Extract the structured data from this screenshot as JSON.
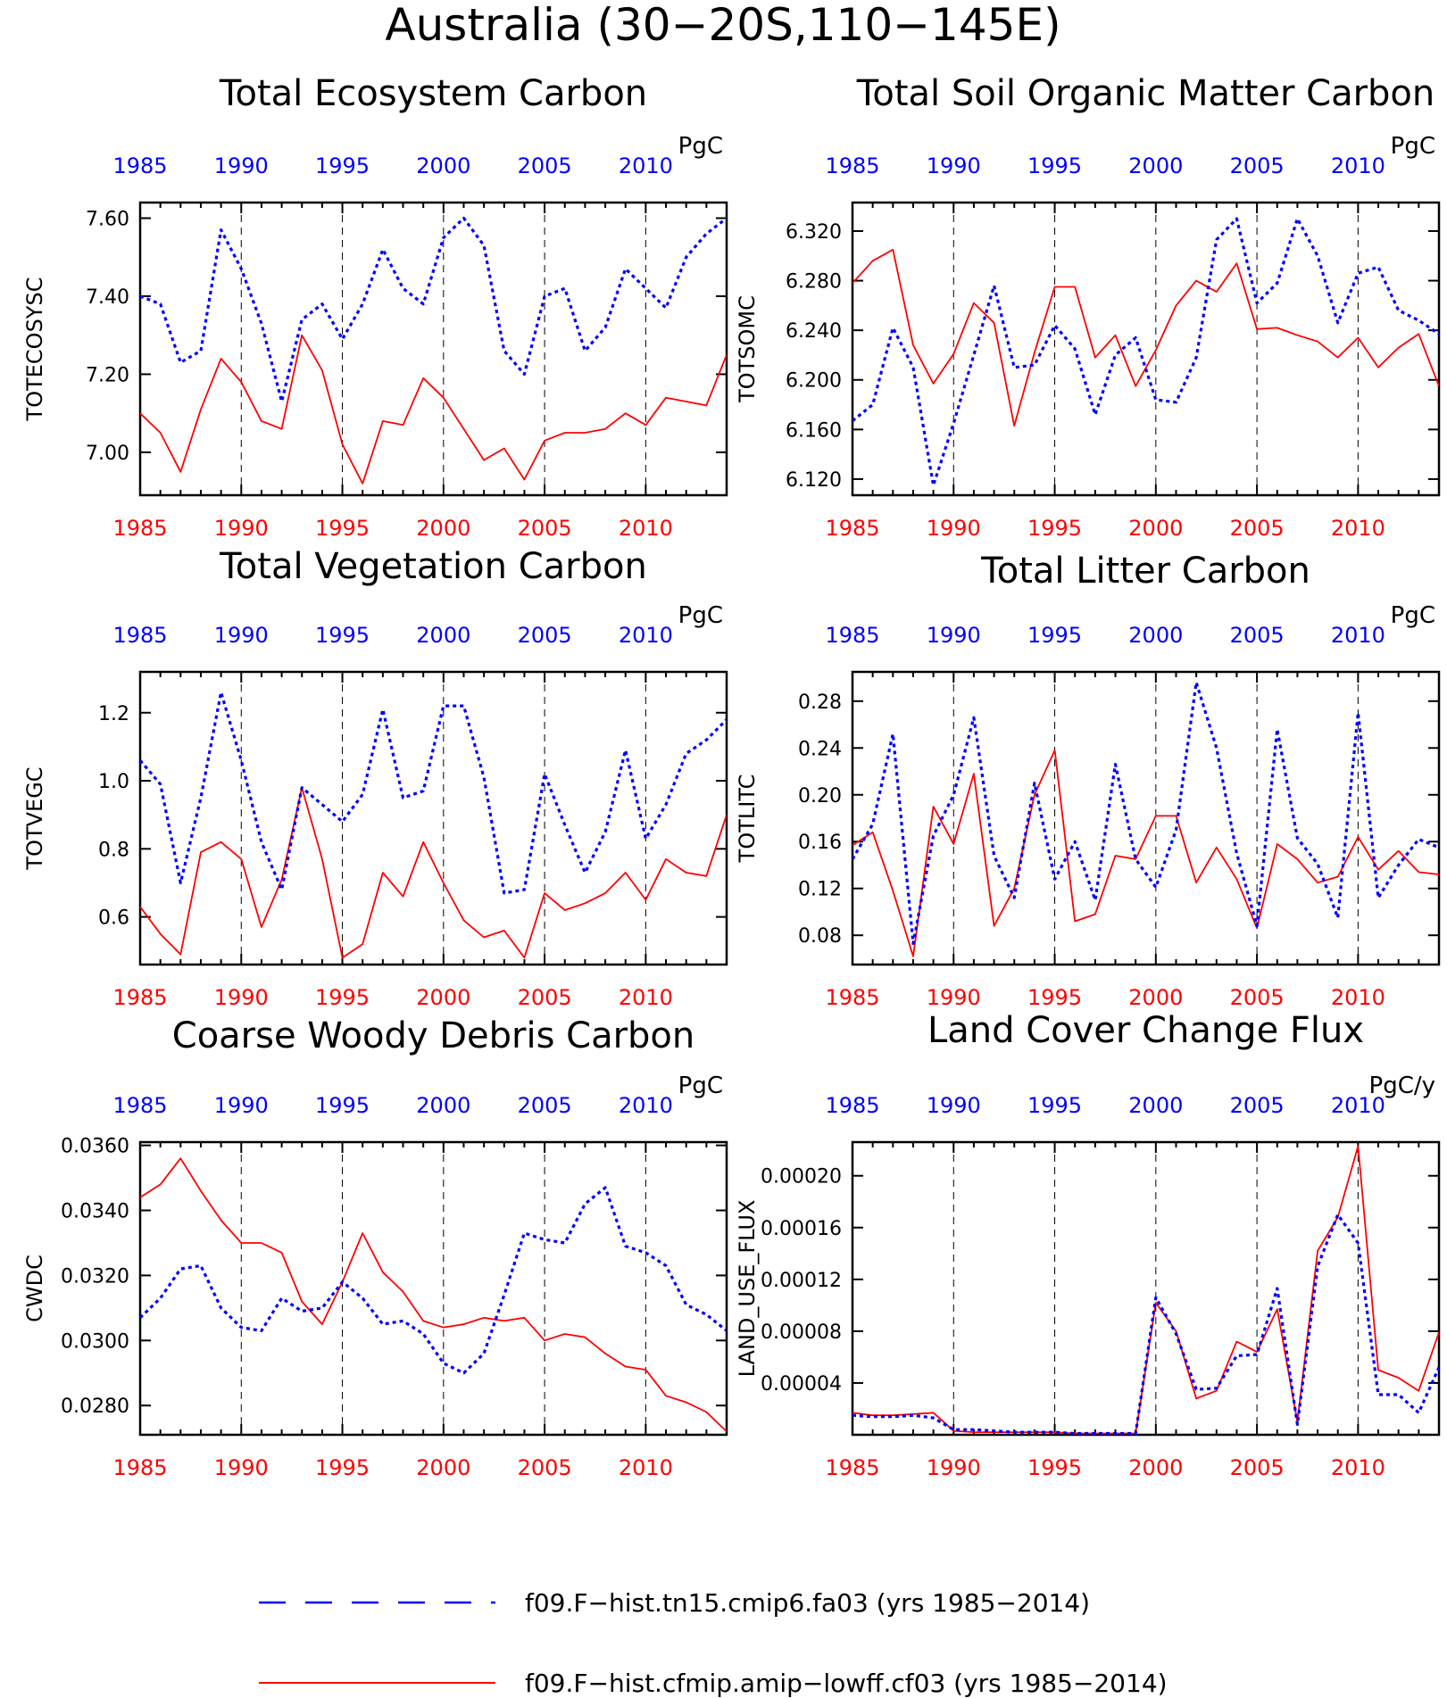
{
  "figure": {
    "title": "Australia (30−20S,110−145E)",
    "x_tick_labels": [
      "1985",
      "1990",
      "1995",
      "2000",
      "2005",
      "2010"
    ],
    "colors": {
      "series_a": "#0000ff",
      "series_b": "#ff0000",
      "axis": "#000000"
    }
  },
  "legend": [
    {
      "label": "f09.F−hist.tn15.cmip6.fa03 (yrs 1985−2014)",
      "color": "#0000ff",
      "style": "dashed"
    },
    {
      "label": "f09.F−hist.cfmip.amip−lowff.cf03 (yrs 1985−2014)",
      "color": "#ff0000",
      "style": "solid"
    }
  ],
  "chart_data": [
    {
      "type": "line",
      "title": "Total Ecosystem Carbon",
      "ylabel": "TOTECOSYSC",
      "units": "PgC",
      "x": [
        1985,
        1986,
        1987,
        1988,
        1989,
        1990,
        1991,
        1992,
        1993,
        1994,
        1995,
        1996,
        1997,
        1998,
        1999,
        2000,
        2001,
        2002,
        2003,
        2004,
        2005,
        2006,
        2007,
        2008,
        2009,
        2010,
        2011,
        2012,
        2013,
        2014
      ],
      "xlim": [
        1985,
        2014
      ],
      "ylim": [
        6.89,
        7.64
      ],
      "yticks": [
        7.0,
        7.2,
        7.4,
        7.6
      ],
      "ytick_labels": [
        "7.00",
        "7.20",
        "7.40",
        "7.60"
      ],
      "grid": "vertical dashed at 1990, 1995, 2000, 2005, 2010",
      "series": [
        {
          "values": [
            7.4,
            7.38,
            7.23,
            7.26,
            7.57,
            7.47,
            7.33,
            7.13,
            7.34,
            7.38,
            7.29,
            7.38,
            7.52,
            7.42,
            7.38,
            7.55,
            7.6,
            7.53,
            7.26,
            7.2,
            7.4,
            7.42,
            7.26,
            7.32,
            7.47,
            7.42,
            7.37,
            7.5,
            7.56,
            7.6
          ]
        },
        {
          "values": [
            7.1,
            7.05,
            6.95,
            7.11,
            7.24,
            7.18,
            7.08,
            7.06,
            7.3,
            7.21,
            7.02,
            6.92,
            7.08,
            7.07,
            7.19,
            7.14,
            7.06,
            6.98,
            7.01,
            6.93,
            7.03,
            7.05,
            7.05,
            7.06,
            7.1,
            7.07,
            7.14,
            7.13,
            7.12,
            7.25
          ]
        }
      ]
    },
    {
      "type": "line",
      "title": "Total Soil Organic Matter Carbon",
      "ylabel": "TOTSOMC",
      "units": "PgC",
      "x": [
        1985,
        1986,
        1987,
        1988,
        1989,
        1990,
        1991,
        1992,
        1993,
        1994,
        1995,
        1996,
        1997,
        1998,
        1999,
        2000,
        2001,
        2002,
        2003,
        2004,
        2005,
        2006,
        2007,
        2008,
        2009,
        2010,
        2011,
        2012,
        2013,
        2014
      ],
      "xlim": [
        1985,
        2014
      ],
      "ylim": [
        6.107,
        6.343
      ],
      "yticks": [
        6.12,
        6.16,
        6.2,
        6.24,
        6.28,
        6.32
      ],
      "ytick_labels": [
        "6.120",
        "6.160",
        "6.200",
        "6.240",
        "6.280",
        "6.320"
      ],
      "grid": "vertical dashed at 1990, 1995, 2000, 2005, 2010",
      "series": [
        {
          "values": [
            6.167,
            6.18,
            6.242,
            6.21,
            6.115,
            6.165,
            6.22,
            6.276,
            6.21,
            6.212,
            6.244,
            6.225,
            6.172,
            6.22,
            6.234,
            6.184,
            6.182,
            6.218,
            6.313,
            6.33,
            6.262,
            6.278,
            6.33,
            6.3,
            6.246,
            6.286,
            6.291,
            6.256,
            6.248,
            6.237
          ]
        },
        {
          "values": [
            6.278,
            6.296,
            6.305,
            6.228,
            6.197,
            6.221,
            6.262,
            6.246,
            6.163,
            6.222,
            6.275,
            6.275,
            6.218,
            6.236,
            6.195,
            6.224,
            6.26,
            6.28,
            6.271,
            6.294,
            6.241,
            6.242,
            6.236,
            6.231,
            6.218,
            6.234,
            6.21,
            6.226,
            6.237,
            6.195
          ]
        }
      ]
    },
    {
      "type": "line",
      "title": "Total Vegetation Carbon",
      "ylabel": "TOTVEGC",
      "units": "PgC",
      "x": [
        1985,
        1986,
        1987,
        1988,
        1989,
        1990,
        1991,
        1992,
        1993,
        1994,
        1995,
        1996,
        1997,
        1998,
        1999,
        2000,
        2001,
        2002,
        2003,
        2004,
        2005,
        2006,
        2007,
        2008,
        2009,
        2010,
        2011,
        2012,
        2013,
        2014
      ],
      "xlim": [
        1985,
        2014
      ],
      "ylim": [
        0.46,
        1.32
      ],
      "yticks": [
        0.6,
        0.8,
        1.0,
        1.2
      ],
      "ytick_labels": [
        "0.6",
        "0.8",
        "1.0",
        "1.2"
      ],
      "grid": "vertical dashed at 1990, 1995, 2000, 2005, 2010",
      "series": [
        {
          "values": [
            1.06,
            0.99,
            0.7,
            0.95,
            1.26,
            1.06,
            0.82,
            0.68,
            0.98,
            0.93,
            0.88,
            0.96,
            1.21,
            0.95,
            0.97,
            1.22,
            1.22,
            1.01,
            0.67,
            0.68,
            1.02,
            0.87,
            0.73,
            0.85,
            1.09,
            0.83,
            0.93,
            1.08,
            1.12,
            1.18
          ]
        },
        {
          "values": [
            0.63,
            0.55,
            0.49,
            0.79,
            0.82,
            0.77,
            0.57,
            0.71,
            0.98,
            0.77,
            0.48,
            0.52,
            0.73,
            0.66,
            0.82,
            0.7,
            0.59,
            0.54,
            0.56,
            0.48,
            0.67,
            0.62,
            0.64,
            0.67,
            0.73,
            0.65,
            0.77,
            0.73,
            0.72,
            0.9
          ]
        }
      ]
    },
    {
      "type": "line",
      "title": "Total Litter Carbon",
      "ylabel": "TOTLITC",
      "units": "PgC",
      "x": [
        1985,
        1986,
        1987,
        1988,
        1989,
        1990,
        1991,
        1992,
        1993,
        1994,
        1995,
        1996,
        1997,
        1998,
        1999,
        2000,
        2001,
        2002,
        2003,
        2004,
        2005,
        2006,
        2007,
        2008,
        2009,
        2010,
        2011,
        2012,
        2013,
        2014
      ],
      "xlim": [
        1985,
        2014
      ],
      "ylim": [
        0.055,
        0.305
      ],
      "yticks": [
        0.08,
        0.12,
        0.16,
        0.2,
        0.24,
        0.28
      ],
      "ytick_labels": [
        "0.08",
        "0.12",
        "0.16",
        "0.20",
        "0.24",
        "0.28"
      ],
      "grid": "vertical dashed at 1990, 1995, 2000, 2005, 2010",
      "series": [
        {
          "values": [
            0.145,
            0.175,
            0.252,
            0.073,
            0.165,
            0.2,
            0.266,
            0.148,
            0.112,
            0.21,
            0.128,
            0.16,
            0.11,
            0.226,
            0.145,
            0.121,
            0.17,
            0.296,
            0.24,
            0.15,
            0.088,
            0.256,
            0.163,
            0.141,
            0.095,
            0.27,
            0.112,
            0.14,
            0.162,
            0.155
          ]
        },
        {
          "values": [
            0.157,
            0.168,
            0.118,
            0.062,
            0.19,
            0.158,
            0.218,
            0.088,
            0.12,
            0.2,
            0.238,
            0.092,
            0.098,
            0.148,
            0.145,
            0.182,
            0.182,
            0.125,
            0.155,
            0.128,
            0.086,
            0.158,
            0.145,
            0.125,
            0.13,
            0.164,
            0.136,
            0.152,
            0.134,
            0.132
          ]
        }
      ]
    },
    {
      "type": "line",
      "title": "Coarse Woody Debris Carbon",
      "ylabel": "CWDC",
      "units": "PgC",
      "x": [
        1985,
        1986,
        1987,
        1988,
        1989,
        1990,
        1991,
        1992,
        1993,
        1994,
        1995,
        1996,
        1997,
        1998,
        1999,
        2000,
        2001,
        2002,
        2003,
        2004,
        2005,
        2006,
        2007,
        2008,
        2009,
        2010,
        2011,
        2012,
        2013,
        2014
      ],
      "xlim": [
        1985,
        2014
      ],
      "ylim": [
        0.0271,
        0.0361
      ],
      "yticks": [
        0.028,
        0.03,
        0.032,
        0.034,
        0.036
      ],
      "ytick_labels": [
        "0.0280",
        "0.0300",
        "0.0320",
        "0.0340",
        "0.0360"
      ],
      "grid": "vertical dashed at 1990, 1995, 2000, 2005, 2010",
      "series": [
        {
          "values": [
            0.0307,
            0.0313,
            0.0322,
            0.0323,
            0.031,
            0.0304,
            0.0303,
            0.0313,
            0.0309,
            0.031,
            0.0318,
            0.0313,
            0.0305,
            0.0306,
            0.0302,
            0.0293,
            0.029,
            0.0296,
            0.0314,
            0.0333,
            0.0331,
            0.033,
            0.0342,
            0.0347,
            0.0329,
            0.0327,
            0.0323,
            0.0311,
            0.0308,
            0.0303
          ]
        },
        {
          "values": [
            0.0344,
            0.0348,
            0.0356,
            0.0346,
            0.0337,
            0.033,
            0.033,
            0.0327,
            0.0312,
            0.0305,
            0.0318,
            0.0333,
            0.0321,
            0.0315,
            0.0306,
            0.0304,
            0.0305,
            0.0307,
            0.0306,
            0.0307,
            0.03,
            0.0302,
            0.0301,
            0.0296,
            0.0292,
            0.0291,
            0.0283,
            0.0281,
            0.0278,
            0.0272
          ]
        }
      ]
    },
    {
      "type": "line",
      "title": "Land Cover Change Flux",
      "ylabel": "LAND_USE_FLUX",
      "units": "PgC/y",
      "x": [
        1985,
        1986,
        1987,
        1988,
        1989,
        1990,
        1991,
        1992,
        1993,
        1994,
        1995,
        1996,
        1997,
        1998,
        1999,
        2000,
        2001,
        2002,
        2003,
        2004,
        2005,
        2006,
        2007,
        2008,
        2009,
        2010,
        2011,
        2012,
        2013,
        2014
      ],
      "xlim": [
        1985,
        2014
      ],
      "ylim": [
        0,
        0.000226
      ],
      "yticks": [
        4e-05,
        8e-05,
        0.00012,
        0.00016,
        0.0002
      ],
      "ytick_labels": [
        "0.00004",
        "0.00008",
        "0.00012",
        "0.00016",
        "0.00020"
      ],
      "grid": "vertical dashed at 1990, 1995, 2000, 2005, 2010",
      "series": [
        {
          "values": [
            1.5e-05,
            1.4e-05,
            1.4e-05,
            1.5e-05,
            1.3e-05,
            4e-06,
            4e-06,
            3e-06,
            2e-06,
            2e-06,
            2e-06,
            1e-06,
            1e-06,
            1e-06,
            1e-06,
            0.000106,
            7.8e-05,
            3.5e-05,
            3.6e-05,
            6.1e-05,
            6.2e-05,
            0.000113,
            8e-06,
            0.00013,
            0.00017,
            0.000148,
            3.1e-05,
            3.1e-05,
            1.7e-05,
            5.2e-05
          ]
        },
        {
          "values": [
            1.7e-05,
            1.5e-05,
            1.5e-05,
            1.6e-05,
            1.7e-05,
            3e-06,
            2e-06,
            2e-06,
            2e-06,
            2e-06,
            2e-06,
            1e-06,
            1e-06,
            1e-06,
            1e-06,
            0.000102,
            8e-05,
            2.8e-05,
            3.4e-05,
            7.2e-05,
            6.4e-05,
            9.7e-05,
            1e-05,
            0.000142,
            0.000168,
            0.000223,
            5e-05,
            4.4e-05,
            3.4e-05,
            7.9e-05
          ]
        }
      ]
    }
  ]
}
